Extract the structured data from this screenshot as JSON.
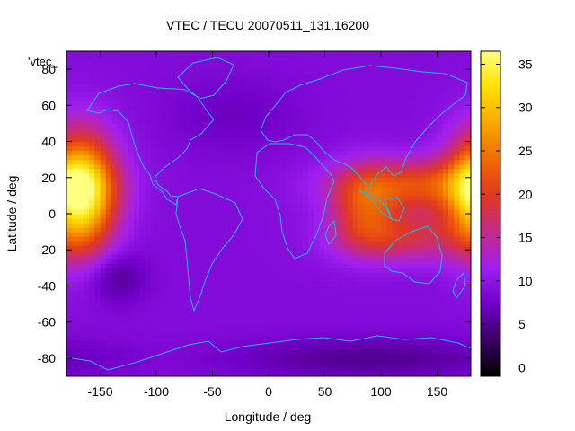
{
  "chart_data": {
    "type": "heatmap",
    "title": "VTEC / TECU 20070511_131.16200",
    "xlabel": "Longitude / deg",
    "ylabel": "Latitude / deg",
    "legend_label": "'vtec_",
    "xlim": [
      -180,
      180
    ],
    "ylim": [
      -90,
      90
    ],
    "x_ticks": [
      -150,
      -100,
      -50,
      0,
      50,
      100,
      150
    ],
    "y_ticks": [
      -80,
      -60,
      -40,
      -20,
      0,
      20,
      40,
      60,
      80
    ],
    "colorbar": {
      "min": -1,
      "max": 36.5,
      "ticks": [
        0,
        5,
        10,
        15,
        20,
        25,
        30,
        35
      ],
      "palette": [
        "#000000",
        "#3a0062",
        "#7000c8",
        "#a020f0",
        "#c42a8a",
        "#e03820",
        "#f06a00",
        "#f8a800",
        "#ffe000",
        "#ffff80"
      ]
    },
    "background_vtec": 9,
    "features": [
      {
        "name": "east-pacific-anomaly",
        "lon": -168,
        "lat": 12,
        "sigma_lon": 22,
        "sigma_lat": 22,
        "peak": 27
      },
      {
        "name": "asian-crest-north",
        "lon": 128,
        "lat": 16,
        "sigma_lon": 48,
        "sigma_lat": 10,
        "peak": 12
      },
      {
        "name": "asian-crest-south",
        "lon": 118,
        "lat": -12,
        "sigma_lon": 40,
        "sigma_lat": 10,
        "peak": 9
      },
      {
        "name": "indian-ocean-band",
        "lon": 85,
        "lat": 3,
        "sigma_lon": 20,
        "sigma_lat": 15,
        "peak": 9
      },
      {
        "name": "south-pacific-low",
        "lon": -135,
        "lat": -35,
        "sigma_lon": 18,
        "sigma_lat": 10,
        "peak": -4
      },
      {
        "name": "north-atlantic-low",
        "lon": -30,
        "lat": 55,
        "sigma_lon": 40,
        "sigma_lat": 15,
        "peak": -2
      },
      {
        "name": "antarctic-low",
        "lon": 90,
        "lat": -80,
        "sigma_lon": 90,
        "sigma_lat": 8,
        "peak": -4
      }
    ]
  }
}
